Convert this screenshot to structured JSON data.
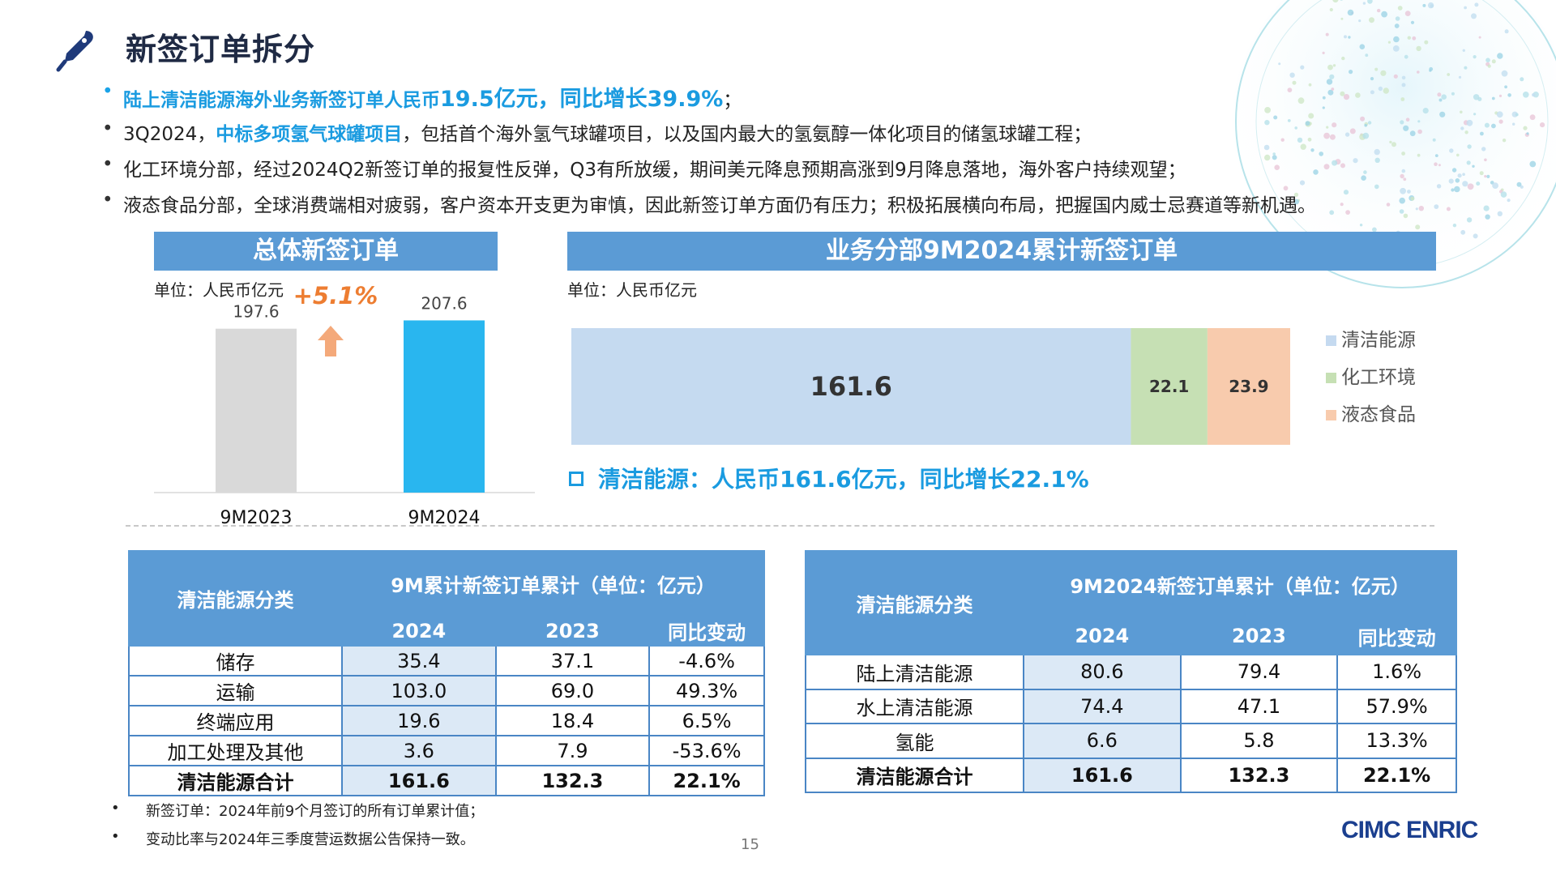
{
  "title": "新签订单拆分",
  "bullets": [
    {
      "parts": [
        {
          "t": "陆上清洁能源海外业务新签订单人民币",
          "hl": true
        },
        {
          "t": "19.5亿元，同比增长39.9%",
          "hl": true,
          "big": true
        },
        {
          "t": "；",
          "hl": false
        }
      ]
    },
    {
      "parts": [
        {
          "t": "3Q2024，",
          "hl": false
        },
        {
          "t": "中标多项氢气球罐项目",
          "hl": true
        },
        {
          "t": "，包括首个海外氢气球罐项目，以及国内最大的氢氨醇一体化项目的储氢球罐工程；",
          "hl": false
        }
      ]
    },
    {
      "parts": [
        {
          "t": "化工环境分部，经过2024Q2新签订单的报复性反弹，Q3有所放缓，期间美元降息预期高涨到9月降息落地，海外客户持续观望；",
          "hl": false
        }
      ]
    },
    {
      "parts": [
        {
          "t": "液态食品分部，全球消费端相对疲弱，客户资本开支更为审慎，因此新签订单方面仍有压力；积极拓展横向布局，把握国内威士忌赛道等新机遇。",
          "hl": false
        }
      ]
    }
  ],
  "left_section": {
    "header": "总体新签订单",
    "unit": "单位：人民币亿元"
  },
  "right_section": {
    "header": "业务分部9M2024累计新签订单",
    "unit": "单位：人民币亿元"
  },
  "clean_note": "清洁能源：人民币161.6亿元，同比增长22.1%",
  "chart_data": [
    {
      "type": "bar",
      "categories": [
        "9M2023",
        "9M2024"
      ],
      "values": [
        197.6,
        207.6
      ],
      "value_labels": [
        "197.6",
        "207.6"
      ],
      "colors": [
        "#d9d9d9",
        "#29b6ef"
      ],
      "annotation": "+5.1%",
      "annotation_color": "#ed7d31"
    },
    {
      "type": "bar",
      "orientation": "horizontal-stacked",
      "series": [
        {
          "name": "清洁能源",
          "values": [
            161.6
          ],
          "label": "161.6",
          "color": "#c5daf0"
        },
        {
          "name": "化工环境",
          "values": [
            22.1
          ],
          "label": "22.1",
          "color": "#c6e0b4"
        },
        {
          "name": "液态食品",
          "values": [
            23.9
          ],
          "label": "23.9",
          "color": "#f8cbad"
        }
      ],
      "legend": "right"
    }
  ],
  "table1": {
    "cat_header": "清洁能源分类",
    "group_header": "9M累计新签订单累计（单位：亿元）",
    "cols": [
      "2024",
      "2023",
      "同比变动"
    ],
    "rows": [
      [
        "储存",
        "35.4",
        "37.1",
        "-4.6%"
      ],
      [
        "运输",
        "103.0",
        "69.0",
        "49.3%"
      ],
      [
        "终端应用",
        "19.6",
        "18.4",
        "6.5%"
      ],
      [
        "加工处理及其他",
        "3.6",
        "7.9",
        "-53.6%"
      ],
      [
        "清洁能源合计",
        "161.6",
        "132.3",
        "22.1%"
      ]
    ]
  },
  "table2": {
    "cat_header": "清洁能源分类",
    "group_header": "9M2024新签订单累计（单位：亿元）",
    "cols": [
      "2024",
      "2023",
      "同比变动"
    ],
    "rows": [
      [
        "陆上清洁能源",
        "80.6",
        "79.4",
        "1.6%"
      ],
      [
        "水上清洁能源",
        "74.4",
        "47.1",
        "57.9%"
      ],
      [
        "氢能",
        "6.6",
        "5.8",
        "13.3%"
      ],
      [
        "清洁能源合计",
        "161.6",
        "132.3",
        "22.1%"
      ]
    ]
  },
  "footnotes": [
    "新签订单：2024年前9个月签订的所有订单累计值；",
    "变动比率与2024年三季度营运数据公告保持一致。"
  ],
  "page_number": "15",
  "logo": "CIMC ENRIC"
}
